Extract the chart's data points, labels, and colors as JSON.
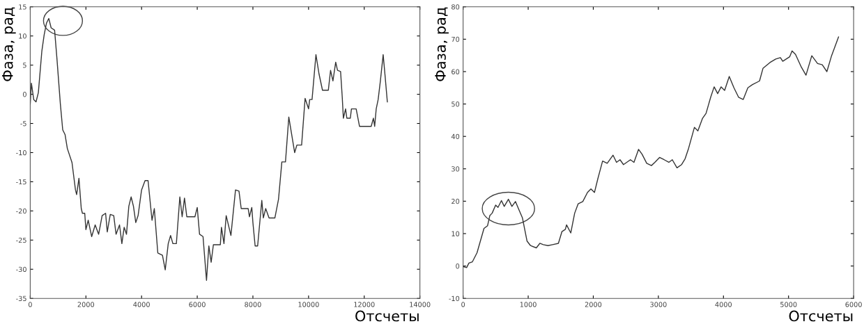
{
  "chart_data": [
    {
      "type": "line",
      "xlabel": "Отсчеты",
      "ylabel": "Фаза, рад",
      "xlim": [
        0,
        14000
      ],
      "ylim": [
        -35,
        15
      ],
      "xticks": [
        0,
        2000,
        4000,
        6000,
        8000,
        10000,
        12000,
        14000
      ],
      "yticks": [
        -35,
        -30,
        -25,
        -20,
        -15,
        -10,
        -5,
        0,
        5,
        10,
        15
      ],
      "grid": false,
      "legend": false,
      "marker": "none",
      "line_style": "solid",
      "series": [
        {
          "color": "#333333",
          "x": [
            0,
            42,
            125,
            208,
            292,
            417,
            500,
            583,
            667,
            750,
            875,
            958,
            1083,
            1167,
            1250,
            1333,
            1500,
            1625,
            1667,
            1750,
            1833,
            1875,
            1958,
            2000,
            2083,
            2208,
            2333,
            2458,
            2583,
            2708,
            2767,
            2875,
            3000,
            3083,
            3208,
            3292,
            3375,
            3458,
            3542,
            3625,
            3708,
            3792,
            3875,
            4000,
            4125,
            4233,
            4375,
            4458,
            4583,
            4750,
            4850,
            4958,
            5042,
            5125,
            5250,
            5375,
            5458,
            5542,
            5625,
            5917,
            6000,
            6083,
            6208,
            6333,
            6417,
            6500,
            6580,
            6830,
            6870,
            6960,
            7040,
            7210,
            7375,
            7500,
            7580,
            7830,
            7875,
            7960,
            8000,
            8080,
            8170,
            8320,
            8375,
            8460,
            8580,
            8790,
            8920,
            9040,
            9170,
            9290,
            9500,
            9580,
            9750,
            9875,
            10000,
            10040,
            10125,
            10265,
            10375,
            10500,
            10710,
            10790,
            10875,
            10975,
            11040,
            11150,
            11210,
            11250,
            11330,
            11375,
            11500,
            11540,
            11710,
            11830,
            12250,
            12330,
            12375,
            12430,
            12500,
            12580,
            12680,
            12750,
            12830
          ],
          "values": [
            -1.7,
            1.9,
            -0.9,
            -1.3,
            0.3,
            7.4,
            10.2,
            12.2,
            13,
            11.4,
            11,
            6.2,
            -1.7,
            -6.1,
            -6.9,
            -9.3,
            -11.7,
            -16.4,
            -17.2,
            -14.4,
            -19.6,
            -20.4,
            -20.4,
            -23.2,
            -21.6,
            -24.4,
            -22.4,
            -24,
            -20.8,
            -20.4,
            -23.6,
            -20.6,
            -20.8,
            -24,
            -22.4,
            -25.6,
            -22.8,
            -24,
            -19.2,
            -17.6,
            -19.2,
            -22,
            -20.8,
            -16.4,
            -14.8,
            -14.8,
            -21.6,
            -19.6,
            -27.2,
            -27.6,
            -30.1,
            -25.6,
            -24.2,
            -25.6,
            -25.6,
            -17.6,
            -21,
            -17.8,
            -21,
            -21,
            -19.4,
            -24,
            -24.4,
            -31.9,
            -26,
            -28.8,
            -25.8,
            -25.8,
            -22.8,
            -25.6,
            -20.8,
            -24.2,
            -16.4,
            -16.6,
            -19.6,
            -19.6,
            -21,
            -19.4,
            -22,
            -26,
            -26,
            -18.2,
            -21.2,
            -19.6,
            -21.2,
            -21.2,
            -18,
            -11.6,
            -11.6,
            -3.9,
            -10,
            -8.7,
            -8.7,
            -0.7,
            -2.5,
            -0.9,
            -0.9,
            6.8,
            3.5,
            0.7,
            0.7,
            4.1,
            2.3,
            5.5,
            4.1,
            3.9,
            -0.5,
            -4.1,
            -2.5,
            -4.1,
            -4.1,
            -2.5,
            -2.5,
            -5.5,
            -5.5,
            -4.1,
            -5.5,
            -2.5,
            -0.9,
            2.3,
            6.8,
            3.1,
            -1.3
          ]
        }
      ]
    },
    {
      "type": "line",
      "xlabel": "Отсчеты",
      "ylabel": "Фаза, рад",
      "xlim": [
        0,
        6000
      ],
      "ylim": [
        -10,
        80
      ],
      "xticks": [
        0,
        1000,
        2000,
        3000,
        4000,
        5000,
        6000
      ],
      "yticks": [
        -10,
        0,
        10,
        20,
        30,
        40,
        50,
        60,
        70,
        80
      ],
      "grid": false,
      "legend": false,
      "marker": "none",
      "line_style": "solid",
      "series": [
        {
          "color": "#333333",
          "x": [
            0,
            54,
            89,
            143,
            214,
            321,
            375,
            411,
            446,
            500,
            536,
            589,
            632,
            696,
            750,
            804,
            857,
            911,
            982,
            1036,
            1125,
            1179,
            1232,
            1304,
            1375,
            1464,
            1518,
            1571,
            1589,
            1654,
            1714,
            1768,
            1839,
            1911,
            1964,
            2018,
            2071,
            2143,
            2214,
            2304,
            2357,
            2411,
            2464,
            2571,
            2625,
            2696,
            2750,
            2821,
            2893,
            2946,
            3018,
            3089,
            3161,
            3214,
            3286,
            3357,
            3411,
            3464,
            3554,
            3607,
            3679,
            3732,
            3804,
            3857,
            3911,
            3964,
            4018,
            4089,
            4161,
            4232,
            4304,
            4375,
            4446,
            4554,
            4607,
            4714,
            4804,
            4875,
            4911,
            5018,
            5054,
            5107,
            5196,
            5268,
            5357,
            5446,
            5518,
            5589,
            5661,
            5768
          ],
          "values": [
            -0.2,
            -0.5,
            0.9,
            1.3,
            4.1,
            11.6,
            12.4,
            15.6,
            16.3,
            18.8,
            18.1,
            20.2,
            18.4,
            20.6,
            18.4,
            19.9,
            17.4,
            14.9,
            7.7,
            6.3,
            5.6,
            7,
            6.6,
            6.3,
            6.6,
            7,
            10.6,
            11.3,
            12.7,
            10.2,
            16.3,
            19.2,
            19.9,
            22.7,
            23.8,
            22.7,
            27,
            32.4,
            31.7,
            34.2,
            32,
            32.8,
            31.3,
            32.8,
            32,
            36,
            34.5,
            31.7,
            31,
            32,
            33.5,
            32.8,
            32,
            32.8,
            30.3,
            31.3,
            33.1,
            36.3,
            42.8,
            41.7,
            45.6,
            47.1,
            52.1,
            55.3,
            53.2,
            55.3,
            54.2,
            58.5,
            55,
            52.1,
            51.4,
            55,
            56,
            57.1,
            61,
            62.8,
            63.9,
            64.3,
            63.2,
            64.6,
            66.4,
            65.3,
            61.4,
            58.9,
            64.9,
            62.5,
            62.1,
            60,
            64.9,
            70.7
          ]
        }
      ]
    }
  ]
}
